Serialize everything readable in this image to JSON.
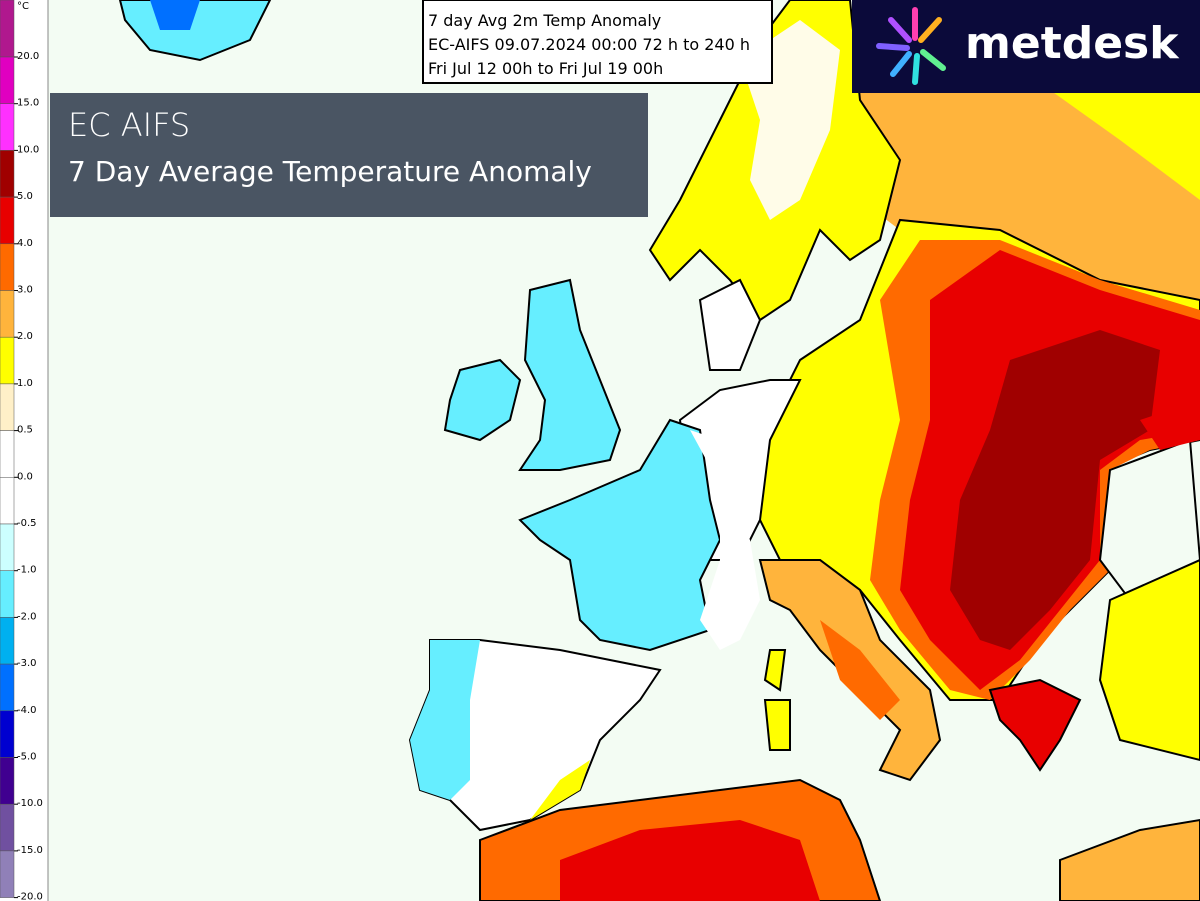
{
  "colorbar": {
    "unit": "°C",
    "levels": [
      {
        "label": "20.0",
        "color": "#b0188e"
      },
      {
        "label": "15.0",
        "color": "#e000c0"
      },
      {
        "label": "10.0",
        "color": "#ff30ff"
      },
      {
        "label": "5.0",
        "color": "#a00000"
      },
      {
        "label": "4.0",
        "color": "#e80000"
      },
      {
        "label": "3.0",
        "color": "#ff6a00"
      },
      {
        "label": "2.0",
        "color": "#ffb43c"
      },
      {
        "label": "1.0",
        "color": "#ffff00"
      },
      {
        "label": "0.5",
        "color": "#fff0c8"
      },
      {
        "label": "0.0",
        "color": "#ffffff"
      },
      {
        "label": "-0.5",
        "color": "#ffffff"
      },
      {
        "label": "-1.0",
        "color": "#ccffff"
      },
      {
        "label": "-2.0",
        "color": "#66eeff"
      },
      {
        "label": "-3.0",
        "color": "#00b0f0"
      },
      {
        "label": "-4.0",
        "color": "#0070ff"
      },
      {
        "label": "-5.0",
        "color": "#0000d0"
      },
      {
        "label": "-10.0",
        "color": "#400090"
      },
      {
        "label": "-15.0",
        "color": "#7050a0"
      },
      {
        "label": "-20.0",
        "color": "#9080b8"
      }
    ]
  },
  "info_box": {
    "lines": [
      "7 day Avg 2m Temp Anomaly",
      "EC-AIFS 09.07.2024 00:00 72 h to 240 h",
      "Fri Jul 12 00h to Fri Jul 19 00h"
    ]
  },
  "title_box": {
    "title": "EC AIFS",
    "subtitle": "7 Day Average Temperature Anomaly"
  },
  "logo": {
    "text": "metdesk"
  }
}
